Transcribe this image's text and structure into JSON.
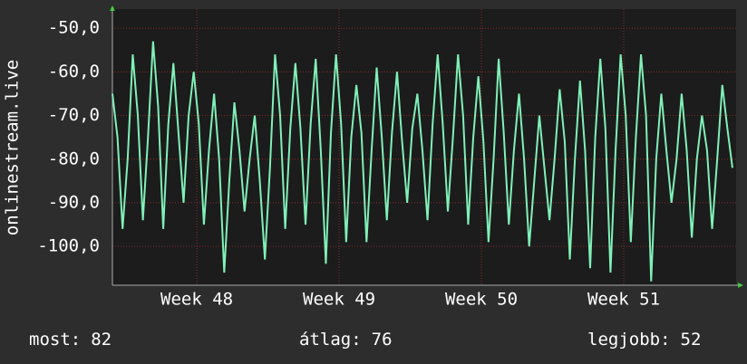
{
  "chart_data": {
    "type": "line",
    "y_label": "onlinestream.live",
    "x": [
      0,
      0.25,
      0.5,
      0.75,
      1,
      1.25,
      1.5,
      1.75,
      2,
      2.25,
      2.5,
      2.75,
      3,
      3.25,
      3.5,
      3.75,
      4,
      4.25,
      4.5,
      4.75,
      5,
      5.25,
      5.5,
      5.75,
      6,
      6.25,
      6.5,
      6.75,
      7,
      7.25,
      7.5,
      7.75,
      8,
      8.25,
      8.5,
      8.75,
      9,
      9.25,
      9.5,
      9.75,
      10,
      10.25,
      10.5,
      10.75,
      11,
      11.25,
      11.5,
      11.75,
      12,
      12.25,
      12.5,
      12.75,
      13,
      13.25,
      13.5,
      13.75,
      14,
      14.25,
      14.5,
      14.75,
      15,
      15.25,
      15.5,
      15.75,
      16,
      16.25,
      16.5,
      16.75,
      17,
      17.25,
      17.5,
      17.75,
      18,
      18.25,
      18.5,
      18.75,
      19,
      19.25,
      19.5,
      19.75,
      20,
      20.25,
      20.5,
      20.75,
      21,
      21.25,
      21.5,
      21.75,
      22,
      22.25,
      22.5,
      22.75,
      23,
      23.25,
      23.5,
      23.75,
      24,
      24.25,
      24.5,
      24.75,
      25,
      25.25,
      25.5,
      25.75,
      26,
      26.25,
      26.5,
      26.75,
      27,
      27.25,
      27.5,
      27.75,
      28,
      28.25,
      28.5,
      28.75,
      29,
      29.25,
      29.5,
      29.75,
      30,
      30.25,
      30.5
    ],
    "series": [
      {
        "color": "#80f0b8",
        "values": [
          -65,
          -75,
          -96,
          -80,
          -56,
          -70,
          -94,
          -75,
          -53,
          -68,
          -96,
          -72,
          -58,
          -74,
          -90,
          -70,
          -60,
          -72,
          -95,
          -78,
          -65,
          -80,
          -106,
          -85,
          -67,
          -78,
          -92,
          -80,
          -70,
          -85,
          -103,
          -82,
          -56,
          -70,
          -96,
          -73,
          -58,
          -73,
          -95,
          -72,
          -57,
          -78,
          -104,
          -74,
          -56,
          -72,
          -99,
          -75,
          -63,
          -74,
          -99,
          -78,
          -59,
          -75,
          -94,
          -74,
          -60,
          -76,
          -90,
          -73,
          -65,
          -78,
          -94,
          -72,
          -56,
          -72,
          -92,
          -75,
          -56,
          -70,
          -95,
          -75,
          -61,
          -76,
          -99,
          -80,
          -57,
          -74,
          -95,
          -78,
          -65,
          -80,
          -100,
          -85,
          -70,
          -82,
          -94,
          -80,
          -64,
          -76,
          -103,
          -80,
          -62,
          -78,
          -105,
          -75,
          -57,
          -73,
          -106,
          -78,
          -56,
          -70,
          -99,
          -75,
          -56,
          -70,
          -108,
          -80,
          -65,
          -78,
          -90,
          -80,
          -65,
          -78,
          -98,
          -80,
          -70,
          -78,
          -96,
          -80,
          -63,
          -73,
          -82
        ]
      }
    ],
    "xlim": [
      0,
      30.68
    ],
    "xticks": [
      {
        "value": 4.15,
        "label": "Week 48"
      },
      {
        "value": 11.15,
        "label": "Week 49"
      },
      {
        "value": 18.15,
        "label": "Week 50"
      },
      {
        "value": 25.15,
        "label": "Week 51"
      }
    ],
    "ylim": [
      -108.9,
      -45.6
    ],
    "yticks": [
      {
        "value": -50,
        "label": "-50,0"
      },
      {
        "value": -60,
        "label": "-60,0"
      },
      {
        "value": -70,
        "label": "-70,0"
      },
      {
        "value": -80,
        "label": "-80,0"
      },
      {
        "value": -90,
        "label": "-90,0"
      },
      {
        "value": -100,
        "label": "-100,0"
      }
    ],
    "grid": true,
    "footer": [
      {
        "label": "most:",
        "value": 82
      },
      {
        "label": "átlag:",
        "value": 76
      },
      {
        "label": "legjobb:",
        "value": 52
      }
    ]
  }
}
